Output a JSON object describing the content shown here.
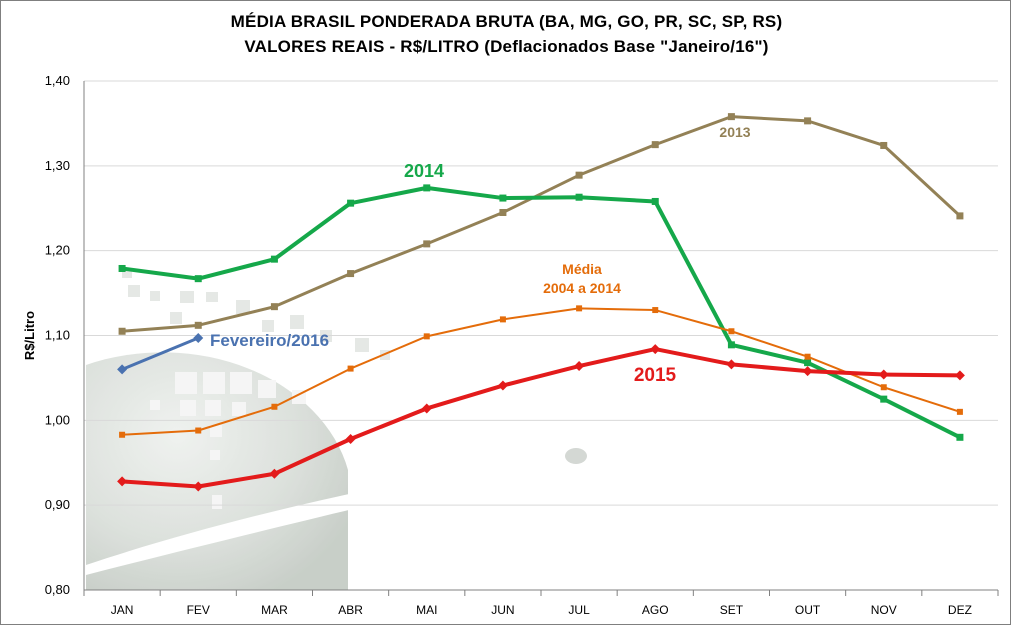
{
  "chart_data": {
    "type": "line",
    "title": "MÉDIA BRASIL PONDERADA BRUTA (BA, MG, GO, PR, SC, SP, RS)",
    "subtitle": "VALORES REAIS - R$/LITRO (Deflacionados Base \"Janeiro/16\")",
    "ylabel": "R$/Litro",
    "xlabel": "",
    "ylim": [
      0.8,
      1.4
    ],
    "yticks": [
      "0,80",
      "0,90",
      "1,00",
      "1,10",
      "1,20",
      "1,30",
      "1,40"
    ],
    "categories": [
      "JAN",
      "FEV",
      "MAR",
      "ABR",
      "MAI",
      "JUN",
      "JUL",
      "AGO",
      "SET",
      "OUT",
      "NOV",
      "DEZ"
    ],
    "grid": true,
    "series": [
      {
        "name": "2013",
        "label": "2013",
        "color": "#938156",
        "marker": "square",
        "width": 3,
        "values": [
          1.105,
          1.112,
          1.134,
          1.173,
          1.208,
          1.245,
          1.289,
          1.325,
          1.358,
          1.353,
          1.324,
          1.241
        ]
      },
      {
        "name": "2014",
        "label": "2014",
        "color": "#15a84a",
        "marker": "square",
        "width": 4,
        "values": [
          1.179,
          1.167,
          1.19,
          1.256,
          1.274,
          1.262,
          1.263,
          1.258,
          1.089,
          1.068,
          1.025,
          0.98
        ]
      },
      {
        "name": "Média 2004 a 2014",
        "label_line1": "Média",
        "label_line2": "2004 a 2014",
        "color": "#e46c0a",
        "marker": "square",
        "width": 2,
        "values": [
          0.983,
          0.988,
          1.016,
          1.061,
          1.099,
          1.119,
          1.132,
          1.13,
          1.105,
          1.075,
          1.039,
          1.01
        ]
      },
      {
        "name": "2015",
        "label": "2015",
        "color": "#e31b1b",
        "marker": "diamond",
        "width": 4,
        "values": [
          0.928,
          0.922,
          0.937,
          0.978,
          1.014,
          1.041,
          1.064,
          1.084,
          1.066,
          1.058,
          1.054,
          1.053
        ]
      },
      {
        "name": "Fevereiro/2016",
        "label": "Fevereiro/2016",
        "color": "#4a72b0",
        "marker": "diamond",
        "width": 3,
        "values": [
          1.06,
          1.097,
          null,
          null,
          null,
          null,
          null,
          null,
          null,
          null,
          null,
          null
        ]
      }
    ]
  }
}
